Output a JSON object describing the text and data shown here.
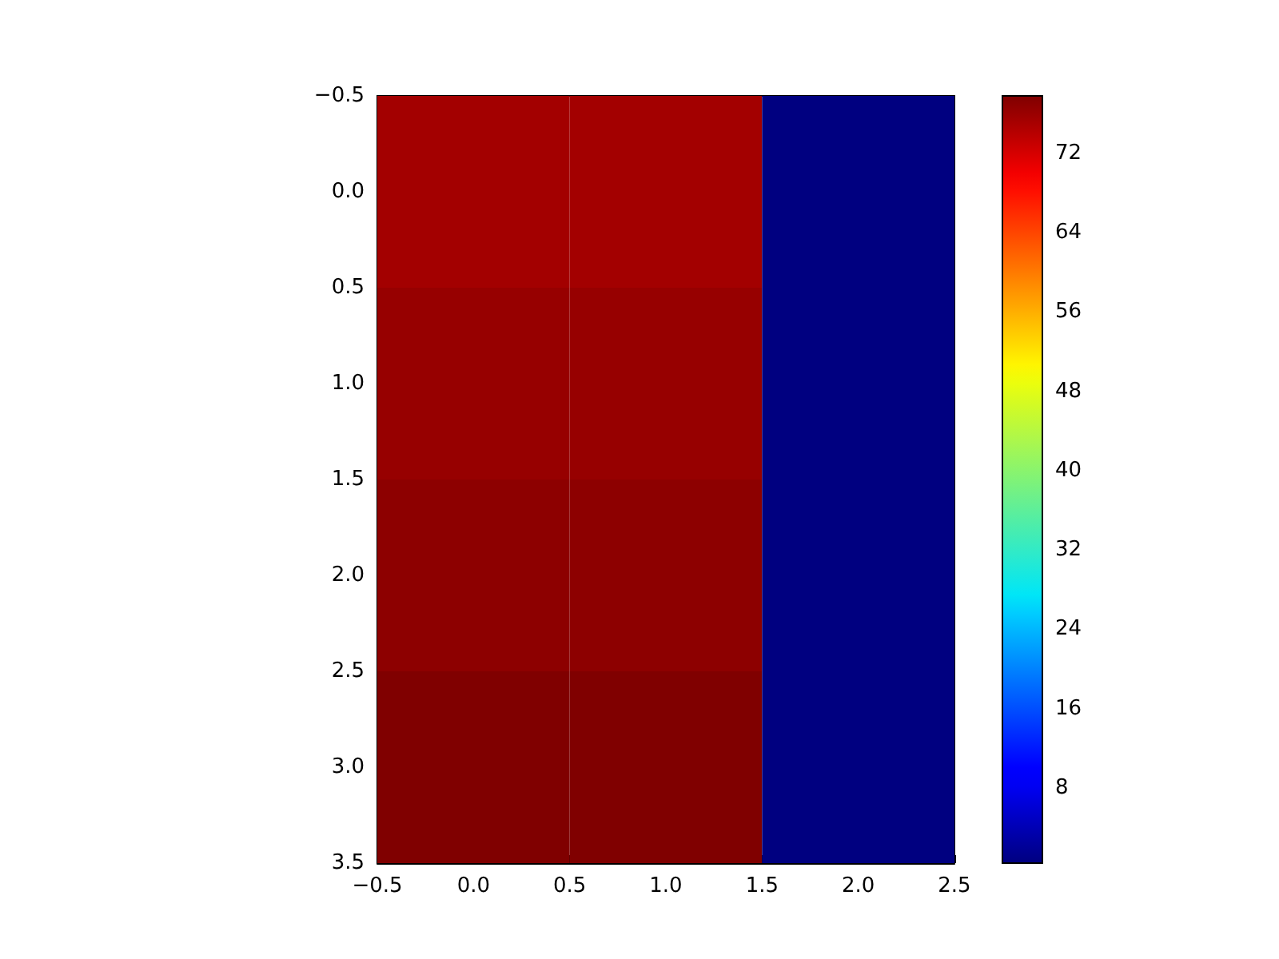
{
  "chart_data": {
    "type": "heatmap",
    "x": [
      0,
      1,
      2
    ],
    "cells": [
      [
        75.4,
        75.4,
        0.4
      ],
      [
        76.2,
        76.2,
        0.4
      ],
      [
        76.9,
        76.9,
        0.4
      ],
      [
        77.8,
        77.8,
        0.4
      ]
    ],
    "xlim": [
      -0.5,
      2.5
    ],
    "ylim": [
      3.5,
      -0.5
    ],
    "xticks": [
      {
        "value": -0.5,
        "label": "−0.5"
      },
      {
        "value": 0,
        "label": "0.0"
      },
      {
        "value": 0.5,
        "label": "0.5"
      },
      {
        "value": 1,
        "label": "1.0"
      },
      {
        "value": 1.5,
        "label": "1.5"
      },
      {
        "value": 2,
        "label": "2.0"
      },
      {
        "value": 2.5,
        "label": "2.5"
      }
    ],
    "yticks": [
      {
        "value": -0.5,
        "label": "−0.5"
      },
      {
        "value": 0,
        "label": "0.0"
      },
      {
        "value": 0.5,
        "label": "0.5"
      },
      {
        "value": 1,
        "label": "1.0"
      },
      {
        "value": 1.5,
        "label": "1.5"
      },
      {
        "value": 2,
        "label": "2.0"
      },
      {
        "value": 2.5,
        "label": "2.5"
      },
      {
        "value": 3,
        "label": "3.0"
      },
      {
        "value": 3.5,
        "label": "3.5"
      }
    ],
    "clim": [
      0.4,
      77.8
    ],
    "cticks": [
      8,
      16,
      24,
      32,
      40,
      48,
      56,
      64,
      72
    ],
    "grid": false
  }
}
